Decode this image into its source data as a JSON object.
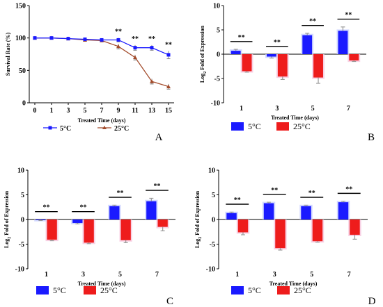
{
  "panels": [
    {
      "letter": "A",
      "chart_data": {
        "type": "line",
        "xlabel": "Treated Time (days)",
        "ylabel": "Survival Rate (%)",
        "x": [
          0,
          1,
          3,
          5,
          7,
          9,
          11,
          13,
          15
        ],
        "ylim": [
          0,
          150
        ],
        "yticks": [
          0,
          50,
          100,
          150
        ],
        "series": [
          {
            "name": "5°C",
            "color": "#1a1aff",
            "marker": "square",
            "values": [
              100,
              100,
              99,
              98,
              97,
              97,
              85,
              85,
              74
            ],
            "errors": [
              1,
              1,
              1,
              1,
              1,
              3,
              4,
              4,
              6
            ]
          },
          {
            "name": "25°C",
            "color": "#a24a2a",
            "marker": "triangle",
            "values": [
              100,
              100,
              99,
              97,
              96,
              87,
              70,
              33,
              25
            ],
            "errors": [
              1,
              1,
              1,
              1,
              1,
              4,
              4,
              4,
              4
            ]
          }
        ],
        "significance": [
          {
            "x_index": 5,
            "label": "**"
          },
          {
            "x_index": 6,
            "label": "**"
          },
          {
            "x_index": 7,
            "label": "**"
          },
          {
            "x_index": 8,
            "label": "**"
          }
        ],
        "grid": false,
        "legend": "bottom"
      }
    },
    {
      "letter": "B",
      "chart_data": {
        "type": "bar",
        "xlabel": "Treated Time (days)",
        "ylabel_main": "Log",
        "ylabel_sub": "2",
        "ylabel_rest": " Fold of Expression",
        "categories": [
          "1",
          "3",
          "5",
          "7"
        ],
        "ylim": [
          -10,
          10
        ],
        "yticks": [
          -10,
          -5,
          0,
          5,
          10
        ],
        "series": [
          {
            "name": "5°C",
            "color": "#1a1aff",
            "values": [
              0.7,
              -0.5,
              3.9,
              4.8
            ],
            "errors": [
              0.3,
              0.3,
              0.4,
              0.8
            ]
          },
          {
            "name": "25°C",
            "color": "#ee1c1c",
            "values": [
              -3.5,
              -4.6,
              -4.8,
              -1.3
            ],
            "errors": [
              0.2,
              0.6,
              1.2,
              0.2
            ]
          }
        ],
        "significance": [
          "**",
          "**",
          "**",
          "**"
        ],
        "grid": false,
        "legend": "bottom"
      }
    },
    {
      "letter": "C",
      "chart_data": {
        "type": "bar",
        "xlabel": "Treated Time (days)",
        "ylabel_main": "Log",
        "ylabel_sub": "2",
        "ylabel_rest": " Fold of Expression",
        "categories": [
          "1",
          "3",
          "5",
          "7"
        ],
        "ylim": [
          -10,
          10
        ],
        "yticks": [
          -10,
          -5,
          0,
          5,
          10
        ],
        "series": [
          {
            "name": "5°C",
            "color": "#1a1aff",
            "values": [
              -0.1,
              -0.7,
              2.7,
              3.7
            ],
            "errors": [
              0.1,
              0.2,
              0.2,
              0.6
            ]
          },
          {
            "name": "25°C",
            "color": "#ee1c1c",
            "values": [
              -4.1,
              -4.7,
              -4.2,
              -1.5
            ],
            "errors": [
              0.2,
              0.2,
              0.5,
              0.8
            ]
          }
        ],
        "significance": [
          "**",
          "**",
          "**",
          "**"
        ],
        "grid": false,
        "legend": "bottom"
      }
    },
    {
      "letter": "D",
      "chart_data": {
        "type": "bar",
        "xlabel": "Treated Time (days)",
        "ylabel_main": "Log",
        "ylabel_sub": "2",
        "ylabel_rest": " Fold of Expression",
        "categories": [
          "1",
          "3",
          "5",
          "7"
        ],
        "ylim": [
          -10,
          10
        ],
        "yticks": [
          -10,
          -5,
          0,
          5,
          10
        ],
        "series": [
          {
            "name": "5°C",
            "color": "#1a1aff",
            "values": [
              1.3,
              3.3,
              2.7,
              3.5
            ],
            "errors": [
              0.2,
              0.2,
              0.2,
              0.2
            ]
          },
          {
            "name": "25°C",
            "color": "#ee1c1c",
            "values": [
              -2.6,
              -5.8,
              -4.4,
              -3.1
            ],
            "errors": [
              0.5,
              0.4,
              0.2,
              0.9
            ]
          }
        ],
        "significance": [
          "**",
          "**",
          "**",
          "**"
        ],
        "grid": false,
        "legend": "bottom"
      }
    }
  ]
}
